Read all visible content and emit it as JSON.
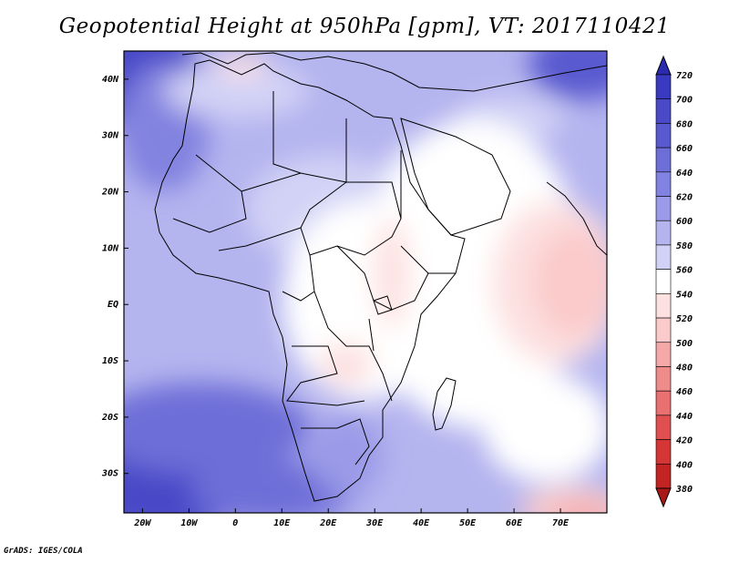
{
  "title": "Geopotential Height at 950hPa [gpm], VT: 2017110421",
  "credit": "GrADS: IGES/COLA",
  "map": {
    "region": "Africa",
    "lon_range": [
      -24,
      80
    ],
    "lat_range": [
      -37,
      45
    ],
    "lat_ticks": [
      {
        "value": 40,
        "label": "40N"
      },
      {
        "value": 30,
        "label": "30N"
      },
      {
        "value": 20,
        "label": "20N"
      },
      {
        "value": 10,
        "label": "10N"
      },
      {
        "value": 0,
        "label": "EQ"
      },
      {
        "value": -10,
        "label": "10S"
      },
      {
        "value": -20,
        "label": "20S"
      },
      {
        "value": -30,
        "label": "30S"
      }
    ],
    "lon_ticks": [
      {
        "value": -20,
        "label": "20W"
      },
      {
        "value": -10,
        "label": "10W"
      },
      {
        "value": 0,
        "label": "0"
      },
      {
        "value": 10,
        "label": "10E"
      },
      {
        "value": 20,
        "label": "20E"
      },
      {
        "value": 30,
        "label": "30E"
      },
      {
        "value": 40,
        "label": "40E"
      },
      {
        "value": 50,
        "label": "50E"
      },
      {
        "value": 60,
        "label": "60E"
      },
      {
        "value": 70,
        "label": "70E"
      }
    ]
  },
  "colorbar": {
    "levels": [
      720,
      700,
      680,
      660,
      640,
      620,
      600,
      580,
      560,
      540,
      520,
      500,
      480,
      460,
      440,
      420,
      400,
      380
    ],
    "colors": [
      "#2b2bb0",
      "#3a3ac0",
      "#4a4ac8",
      "#5a5ad0",
      "#6e6ed8",
      "#8282e0",
      "#9a9ae8",
      "#b4b4ef",
      "#d2d2f6",
      "#ffffff",
      "#fde0e0",
      "#fbcaca",
      "#f4a8a8",
      "#ee8c8c",
      "#e87070",
      "#e05050",
      "#d43535",
      "#c22424",
      "#a81818"
    ]
  }
}
